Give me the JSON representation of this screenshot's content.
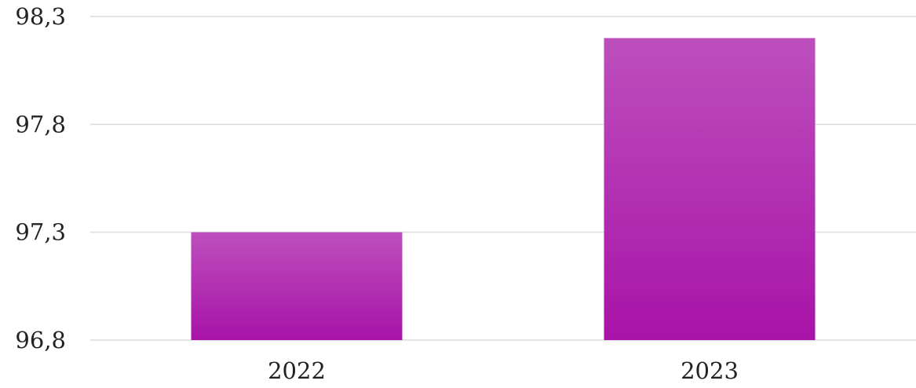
{
  "chart_data": {
    "type": "bar",
    "title": "",
    "xlabel": "",
    "ylabel": "",
    "categories": [
      "2022",
      "2023"
    ],
    "values": [
      97.3,
      98.2
    ],
    "ylim": [
      96.8,
      98.3
    ],
    "yticks": [
      "96,8",
      "97,3",
      "97,8",
      "98,3"
    ],
    "ytick_values": [
      96.8,
      97.3,
      97.8,
      98.3
    ],
    "grid": true,
    "legend": "none",
    "bar_color_top": "#bd4fbd",
    "bar_color_bottom": "#a813a8"
  }
}
